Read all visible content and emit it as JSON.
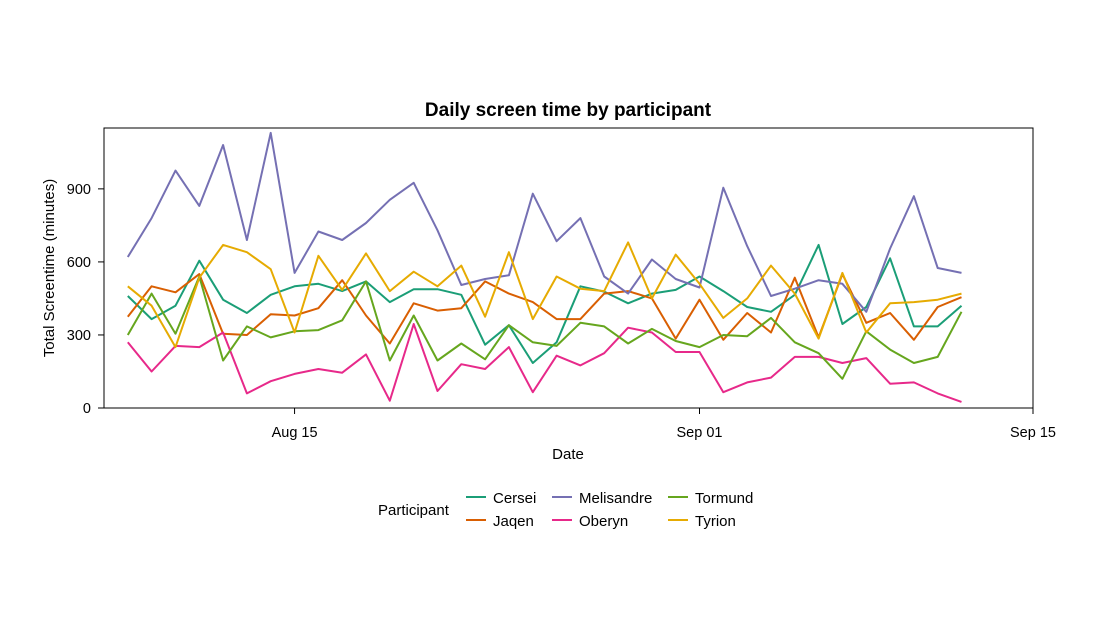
{
  "chart_data": {
    "type": "line",
    "title": "Daily screen time by participant",
    "xlabel": "Date",
    "ylabel": "Total Screentime (minutes)",
    "x_start": "2023-08-08",
    "x_end": "2023-09-14",
    "xlim": [
      "2023-08-07",
      "2023-09-15"
    ],
    "ylim": [
      0,
      1150
    ],
    "x_ticks": [
      {
        "date": "2023-08-15",
        "label": "Aug 15"
      },
      {
        "date": "2023-09-01",
        "label": "Sep 01"
      },
      {
        "date": "2023-09-15",
        "label": "Sep 15"
      }
    ],
    "y_ticks": [
      0,
      300,
      600,
      900
    ],
    "legend_title": "Participant",
    "legend_position": "bottom",
    "grid": false,
    "series": [
      {
        "name": "Cersei",
        "color": "#1B9E77",
        "values": [
          460,
          365,
          420,
          605,
          445,
          390,
          465,
          500,
          510,
          480,
          520,
          435,
          488,
          488,
          465,
          260,
          340,
          185,
          270,
          500,
          478,
          430,
          470,
          485,
          540,
          480,
          415,
          395,
          465,
          670,
          345,
          415,
          615,
          335,
          335,
          420
        ]
      },
      {
        "name": "Jaqen",
        "color": "#D95F02",
        "values": [
          375,
          500,
          475,
          550,
          305,
          300,
          385,
          380,
          410,
          525,
          380,
          265,
          430,
          400,
          410,
          520,
          470,
          435,
          365,
          365,
          470,
          480,
          450,
          285,
          445,
          280,
          390,
          310,
          535,
          290,
          550,
          350,
          390,
          280,
          415,
          455
        ]
      },
      {
        "name": "Melisandre",
        "color": "#7570B3",
        "values": [
          620,
          780,
          975,
          830,
          1080,
          690,
          1130,
          555,
          725,
          690,
          760,
          855,
          925,
          730,
          505,
          530,
          545,
          880,
          685,
          780,
          540,
          470,
          610,
          530,
          495,
          905,
          665,
          460,
          490,
          525,
          510,
          395,
          655,
          870,
          575,
          555
        ]
      },
      {
        "name": "Oberyn",
        "color": "#E7298A",
        "values": [
          270,
          150,
          255,
          250,
          310,
          60,
          110,
          140,
          160,
          145,
          220,
          30,
          345,
          70,
          180,
          160,
          250,
          65,
          215,
          175,
          225,
          330,
          310,
          230,
          230,
          65,
          105,
          125,
          210,
          210,
          185,
          205,
          100,
          105,
          60,
          25
        ]
      },
      {
        "name": "Tormund",
        "color": "#66A61E",
        "values": [
          300,
          470,
          305,
          540,
          195,
          335,
          290,
          315,
          320,
          360,
          520,
          195,
          380,
          195,
          265,
          200,
          340,
          270,
          255,
          350,
          335,
          265,
          325,
          275,
          250,
          300,
          295,
          370,
          270,
          225,
          120,
          315,
          240,
          185,
          210,
          395
        ]
      },
      {
        "name": "Tyrion",
        "color": "#E6AB02",
        "values": [
          500,
          420,
          250,
          535,
          670,
          640,
          570,
          310,
          625,
          485,
          635,
          480,
          560,
          500,
          585,
          375,
          640,
          365,
          540,
          490,
          480,
          680,
          450,
          630,
          510,
          370,
          450,
          585,
          470,
          285,
          555,
          310,
          430,
          435,
          445,
          470
        ]
      }
    ]
  }
}
